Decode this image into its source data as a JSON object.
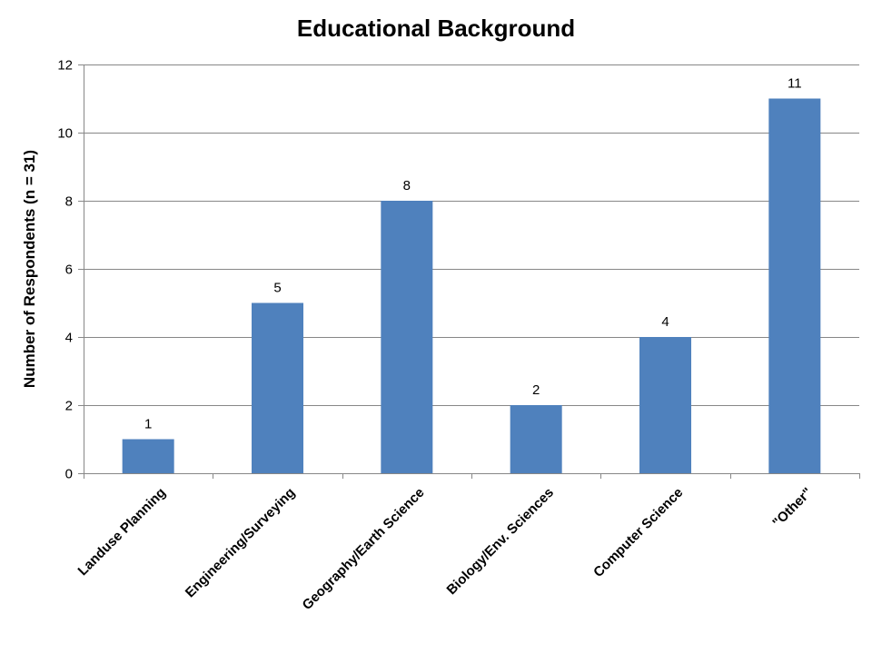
{
  "chart_data": {
    "type": "bar",
    "title": "Educational Background",
    "ylabel": "Number of Respondents (n = 31)",
    "xlabel": "",
    "categories": [
      "Landuse Planning",
      "Engineering/Surveying",
      "Geography/Earth Science",
      "Biology/Env. Sciences",
      "Computer Science",
      "\"Other\""
    ],
    "values": [
      1,
      5,
      8,
      2,
      4,
      11
    ],
    "data_labels": [
      "1",
      "5",
      "8",
      "2",
      "4",
      "11"
    ],
    "ylim": [
      0,
      12
    ],
    "yticks": [
      0,
      2,
      4,
      6,
      8,
      10,
      12
    ],
    "grid": true,
    "legend": "none",
    "bar_color": "#4f81bd"
  }
}
